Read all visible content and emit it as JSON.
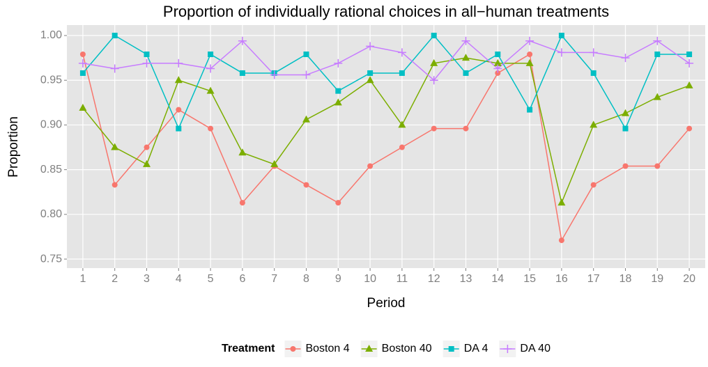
{
  "chart_data": {
    "type": "line",
    "title": "Proportion of individually rational choices in all−human treatments",
    "x_label": "Period",
    "y_label": "Proportion",
    "legend_title": "Treatment",
    "legend_position": "bottom",
    "grid": true,
    "x": [
      1,
      2,
      3,
      4,
      5,
      6,
      7,
      8,
      9,
      10,
      11,
      12,
      13,
      14,
      15,
      16,
      17,
      18,
      19,
      20
    ],
    "xlim": [
      0.5,
      20.5
    ],
    "xticks": [
      1,
      2,
      3,
      4,
      5,
      6,
      7,
      8,
      9,
      10,
      11,
      12,
      13,
      14,
      15,
      16,
      17,
      18,
      19,
      20
    ],
    "ylim": [
      0.7399,
      1.0117
    ],
    "yticks": [
      0.75,
      {
        "value": 0.8,
        "label": "0.80"
      },
      0.85,
      {
        "value": 0.9,
        "label": "0.90"
      },
      0.95,
      {
        "value": 1,
        "label": "1.00"
      }
    ],
    "series": [
      {
        "name": "Boston 4",
        "color": "#F8766D",
        "marker": "circle",
        "values": [
          0.979,
          0.833,
          0.875,
          0.917,
          0.896,
          0.813,
          0.854,
          0.833,
          0.813,
          0.854,
          0.875,
          0.896,
          0.896,
          0.958,
          0.979,
          0.771,
          0.833,
          0.854,
          0.854,
          0.896
        ]
      },
      {
        "name": "Boston 40",
        "color": "#7CAE00",
        "marker": "triangle",
        "values": [
          0.919,
          0.875,
          0.856,
          0.95,
          0.938,
          0.869,
          0.856,
          0.906,
          0.925,
          0.95,
          0.9,
          0.969,
          0.975,
          0.969,
          0.969,
          0.813,
          0.9,
          0.913,
          0.931,
          0.944
        ]
      },
      {
        "name": "DA 4",
        "color": "#00BFC4",
        "marker": "square",
        "values": [
          0.958,
          1.0,
          0.979,
          0.896,
          0.979,
          0.958,
          0.958,
          0.979,
          0.938,
          0.958,
          0.958,
          1.0,
          0.958,
          0.979,
          0.917,
          1.0,
          0.958,
          0.896,
          0.979,
          0.979
        ]
      },
      {
        "name": "DA 40",
        "color": "#C77CFF",
        "marker": "plus",
        "values": [
          0.969,
          0.963,
          0.969,
          0.969,
          0.963,
          0.994,
          0.956,
          0.956,
          0.969,
          0.988,
          0.981,
          0.95,
          0.994,
          0.963,
          0.994,
          0.981,
          0.981,
          0.975,
          0.994,
          0.969
        ]
      }
    ]
  }
}
